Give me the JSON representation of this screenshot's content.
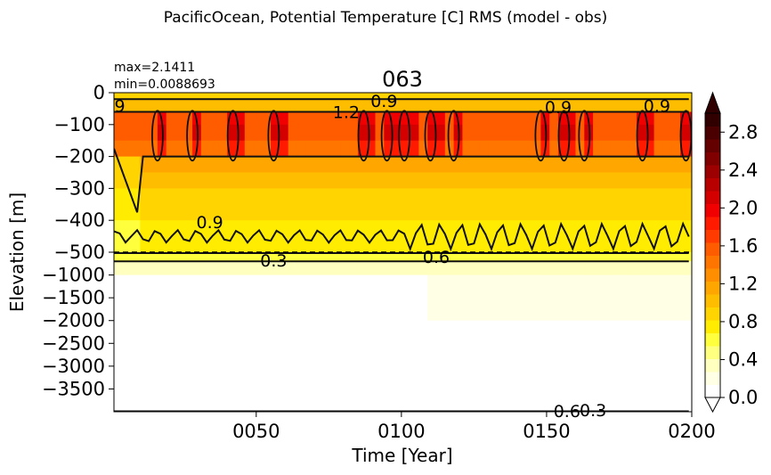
{
  "figure": {
    "suptitle": "PacificOcean, Potential Temperature [C] RMS (model - obs)",
    "title": "063",
    "max_label": "max=2.1411",
    "min_label": "min=0.0088693"
  },
  "chart_data": {
    "type": "heatmap",
    "title": "063",
    "suptitle": "PacificOcean, Potential Temperature [C] RMS (model - obs)",
    "xlabel": "Time [Year]",
    "ylabel": "Elevation [m]",
    "xlim": [
      1,
      200
    ],
    "x_ticks": [
      {
        "value": 50,
        "label": "0050"
      },
      {
        "value": 100,
        "label": "0100"
      },
      {
        "value": 150,
        "label": "0150"
      },
      {
        "value": 200,
        "label": "0200"
      }
    ],
    "y_axis": "split: linear 0 to -500 (upper), then linear -500 to -4000 (lower)",
    "y_ticks": [
      0,
      -100,
      -200,
      -300,
      -400,
      -500,
      -1000,
      -1500,
      -2000,
      -2500,
      -3000,
      -3500
    ],
    "colorbar": {
      "min": 0.0,
      "max": 3.0,
      "extend": "both",
      "ticks": [
        "0.0",
        "0.4",
        "0.8",
        "1.2",
        "1.6",
        "2.0",
        "2.4",
        "2.8"
      ],
      "colors": [
        "#ffffff",
        "#ffffe6",
        "#ffffbf",
        "#ffff80",
        "#ffff3d",
        "#ffec00",
        "#ffd400",
        "#ffbd00",
        "#ffa600",
        "#ff8f00",
        "#ff7500",
        "#ff5c00",
        "#ff3b00",
        "#ff1a00",
        "#f00000",
        "#d40000",
        "#b80000",
        "#9c0000",
        "#800000",
        "#640000",
        "#4a0000",
        "#300000"
      ]
    },
    "contour_levels": [
      0.3,
      0.6,
      0.9,
      1.2
    ],
    "contour_labels": [
      {
        "text": "9",
        "year": 3,
        "depth": -40
      },
      {
        "text": "0.9",
        "year": 94,
        "depth": -25
      },
      {
        "text": "0.9",
        "year": 154,
        "depth": -45
      },
      {
        "text": "0.9",
        "year": 188,
        "depth": -40
      },
      {
        "text": "1.2",
        "year": 81,
        "depth": -60
      },
      {
        "text": "0.9",
        "year": 34,
        "depth": -405
      },
      {
        "text": "0.3",
        "year": 56,
        "depth": -680
      },
      {
        "text": "0.6",
        "year": 112,
        "depth": -600
      },
      {
        "text": "0.6",
        "year": 157,
        "depth": -3980
      },
      {
        "text": "0.3",
        "year": 166,
        "depth": -3960
      }
    ],
    "depth_bands": [
      {
        "top": 0,
        "bottom": -20,
        "rms": 0.85
      },
      {
        "top": -20,
        "bottom": -60,
        "rms": 1.05
      },
      {
        "top": -60,
        "bottom": -100,
        "rms": 1.5
      },
      {
        "top": -100,
        "bottom": -150,
        "rms": 1.55
      },
      {
        "top": -150,
        "bottom": -200,
        "rms": 1.4
      },
      {
        "top": -200,
        "bottom": -250,
        "rms": 1.15
      },
      {
        "top": -250,
        "bottom": -300,
        "rms": 1.05
      },
      {
        "top": -300,
        "bottom": -400,
        "rms": 0.95
      },
      {
        "top": -400,
        "bottom": -500,
        "rms": 0.8
      },
      {
        "top": -500,
        "bottom": -700,
        "rms": 0.55
      },
      {
        "top": -700,
        "bottom": -1000,
        "rms": 0.3
      },
      {
        "top": -1000,
        "bottom": -2000,
        "rms": 0.12
      },
      {
        "top": -2000,
        "bottom": -4000,
        "rms": 0.05
      }
    ],
    "hotspot_years": [
      16,
      28,
      42,
      56,
      87,
      95,
      101,
      110,
      118,
      148,
      156,
      163,
      183,
      198
    ]
  }
}
